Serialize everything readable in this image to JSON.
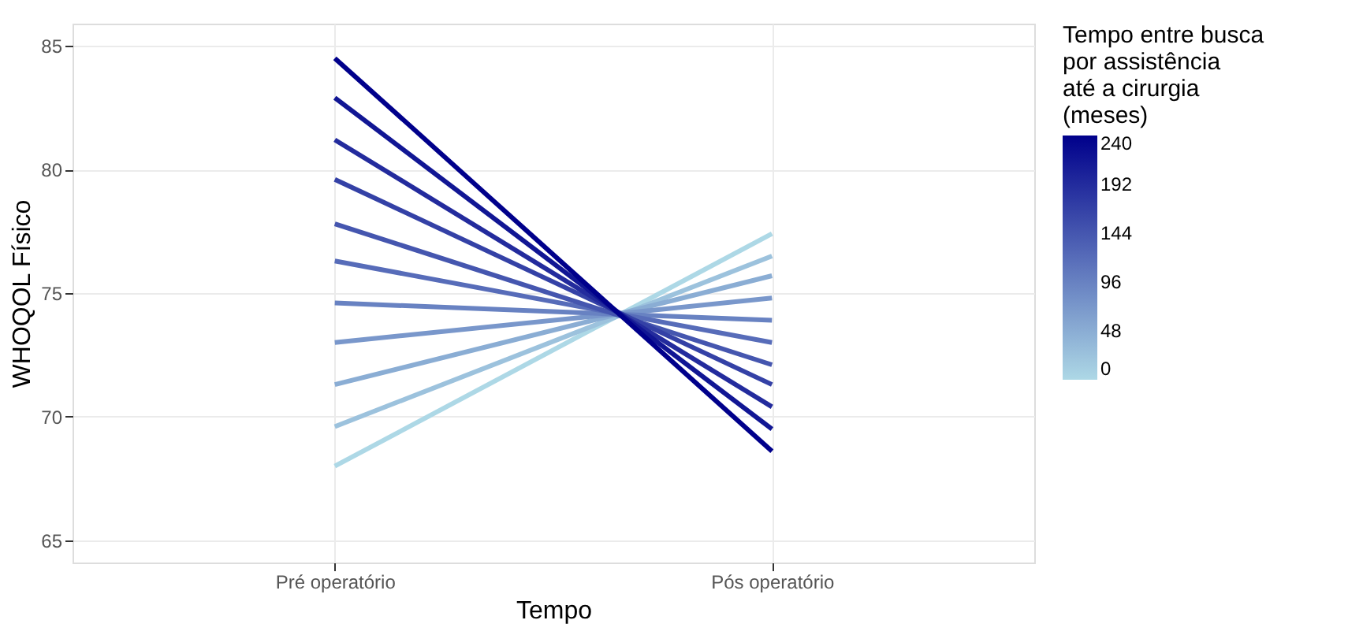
{
  "chart_data": {
    "type": "line",
    "xlabel": "Tempo",
    "ylabel": "WHOQOL Físico",
    "categories": [
      "Pré operatório",
      "Pós operatório"
    ],
    "series": [
      {
        "color": "#add8e6",
        "values": [
          68.0,
          77.4
        ]
      },
      {
        "color": "#9cc2dd",
        "values": [
          69.6,
          76.5
        ]
      },
      {
        "color": "#8aadd4",
        "values": [
          71.3,
          75.7
        ]
      },
      {
        "color": "#7997cb",
        "values": [
          73.0,
          74.8
        ]
      },
      {
        "color": "#6882c2",
        "values": [
          74.6,
          73.9
        ]
      },
      {
        "color": "#576cb9",
        "values": [
          76.3,
          73.0
        ]
      },
      {
        "color": "#4556af",
        "values": [
          77.8,
          72.1
        ]
      },
      {
        "color": "#3441a6",
        "values": [
          79.6,
          71.3
        ]
      },
      {
        "color": "#232b9d",
        "values": [
          81.2,
          70.4
        ]
      },
      {
        "color": "#111694",
        "values": [
          82.9,
          69.5
        ]
      },
      {
        "color": "#00008b",
        "values": [
          84.5,
          68.6
        ]
      }
    ],
    "ylim": [
      64.1,
      85.9
    ],
    "yticks": [
      65,
      70,
      75,
      80,
      85
    ],
    "clabel": "Tempo entre busca\npor assistência\naté a cirurgia\n(meses)",
    "clim": [
      0,
      240
    ],
    "cticks": [
      0,
      48,
      96,
      144,
      192,
      240
    ],
    "grid": true,
    "line_style": "solid",
    "marker": "none"
  }
}
